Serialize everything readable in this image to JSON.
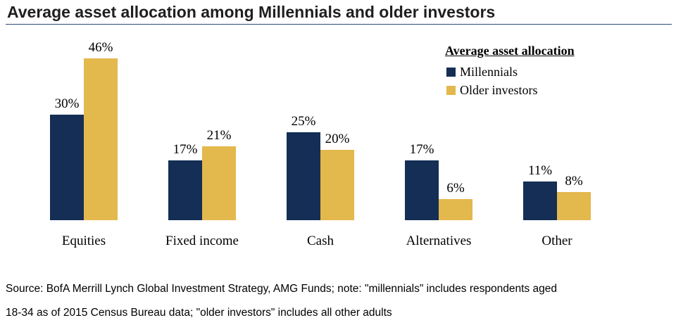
{
  "title": "Average asset allocation among Millennials and older investors",
  "legend": {
    "title": "Average asset allocation",
    "items": [
      "Millennials",
      "Older investors"
    ]
  },
  "colors": {
    "millennials": "#142e55",
    "older": "#e3b84d",
    "rule": "#2b4a7a"
  },
  "source": {
    "line1": "Source: BofA Merrill Lynch Global Investment Strategy, AMG Funds; note: \"millennials\" includes respondents aged",
    "line2": "18-34 as of 2015 Census Bureau data; \"older investors\" includes all other adults"
  },
  "chart_data": {
    "type": "bar",
    "categories": [
      "Equities",
      "Fixed income",
      "Cash",
      "Alternatives",
      "Other"
    ],
    "series": [
      {
        "name": "Millennials",
        "values": [
          30,
          17,
          25,
          17,
          11
        ],
        "labels": [
          "30%",
          "17%",
          "25%",
          "17%",
          "11%"
        ]
      },
      {
        "name": "Older investors",
        "values": [
          46,
          21,
          20,
          6,
          8
        ],
        "labels": [
          "46%",
          "21%",
          "20%",
          "6%",
          "8%"
        ]
      }
    ],
    "title": "Average asset allocation among Millennials and older investors",
    "ylim": [
      0,
      46
    ],
    "grid": false,
    "legend_position": "top-right"
  }
}
